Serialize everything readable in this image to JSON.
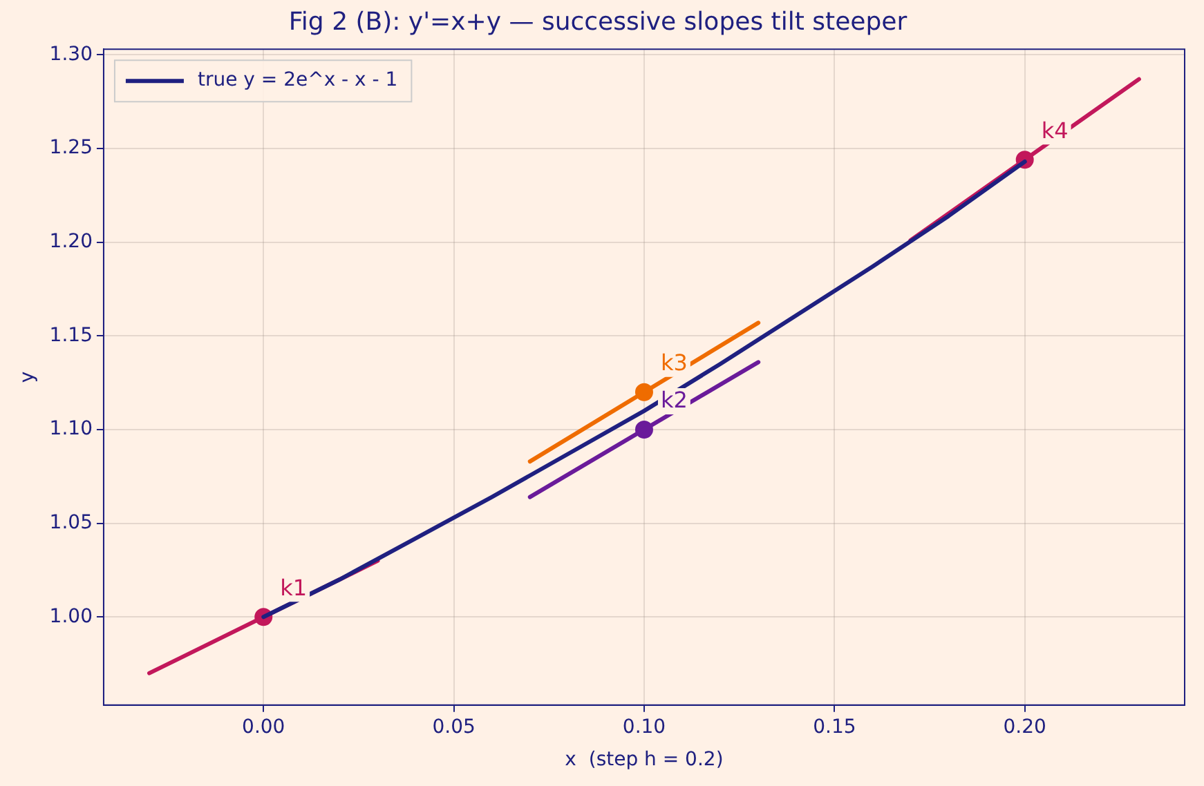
{
  "chart_data": {
    "type": "line",
    "title": "Fig 2 (B): y'=x+y — successive slopes tilt steeper",
    "xlabel": "x  (step h = 0.2)",
    "ylabel": "y",
    "series": [
      {
        "name": "true y = 2e^x - x - 1",
        "color": "#1f2080",
        "x": [
          0,
          0.02,
          0.04,
          0.06,
          0.08,
          0.1,
          0.12,
          0.14,
          0.16,
          0.18,
          0.2
        ],
        "values": [
          1.0,
          1.02,
          1.042,
          1.064,
          1.087,
          1.11,
          1.135,
          1.161,
          1.187,
          1.214,
          1.243
        ]
      },
      {
        "type": "line",
        "color": "#c2185b",
        "x": [
          -0.03,
          0.03
        ],
        "values": [
          0.97,
          1.03
        ]
      },
      {
        "type": "line",
        "color": "#6a1b9a",
        "x": [
          0.07,
          0.13
        ],
        "values": [
          1.064,
          1.136
        ]
      },
      {
        "type": "line",
        "color": "#ef6c00",
        "x": [
          0.07,
          0.13
        ],
        "values": [
          1.083,
          1.157
        ]
      },
      {
        "type": "line",
        "color": "#c2185b",
        "x": [
          0.17,
          0.23
        ],
        "values": [
          1.201,
          1.287
        ]
      },
      {
        "type": "scatter",
        "marker": "circle",
        "color": "#c2185b",
        "x": [
          0
        ],
        "values": [
          1.0
        ]
      },
      {
        "type": "scatter",
        "marker": "circle",
        "color": "#6a1b9a",
        "x": [
          0.1
        ],
        "values": [
          1.1
        ]
      },
      {
        "type": "scatter",
        "marker": "circle",
        "color": "#ef6c00",
        "x": [
          0.1
        ],
        "values": [
          1.12
        ]
      },
      {
        "type": "scatter",
        "marker": "circle",
        "color": "#c2185b",
        "x": [
          0.2
        ],
        "values": [
          1.244
        ]
      }
    ],
    "annotations": [
      {
        "text": "k1",
        "x": 0,
        "y": 1.0
      },
      {
        "text": "k2",
        "x": 0.1,
        "y": 1.1
      },
      {
        "text": "k3",
        "x": 0.1,
        "y": 1.12
      },
      {
        "text": "k4",
        "x": 0.2,
        "y": 1.244
      }
    ],
    "xlim": [
      -0.042,
      0.242
    ],
    "ylim": [
      0.953,
      1.303
    ],
    "xticks": [
      {
        "value": 0,
        "label": "0.00"
      },
      {
        "value": 0.05,
        "label": "0.05"
      },
      {
        "value": 0.1,
        "label": "0.10"
      },
      {
        "value": 0.15,
        "label": "0.15"
      },
      {
        "value": 0.2,
        "label": "0.20"
      }
    ],
    "yticks": [
      {
        "value": 1.0,
        "label": "1.00"
      },
      {
        "value": 1.05,
        "label": "1.05"
      },
      {
        "value": 1.1,
        "label": "1.10"
      },
      {
        "value": 1.15,
        "label": "1.15"
      },
      {
        "value": 1.2,
        "label": "1.20"
      },
      {
        "value": 1.25,
        "label": "1.25"
      },
      {
        "value": 1.3,
        "label": "1.30"
      }
    ],
    "grid": true,
    "legend": "top left"
  }
}
